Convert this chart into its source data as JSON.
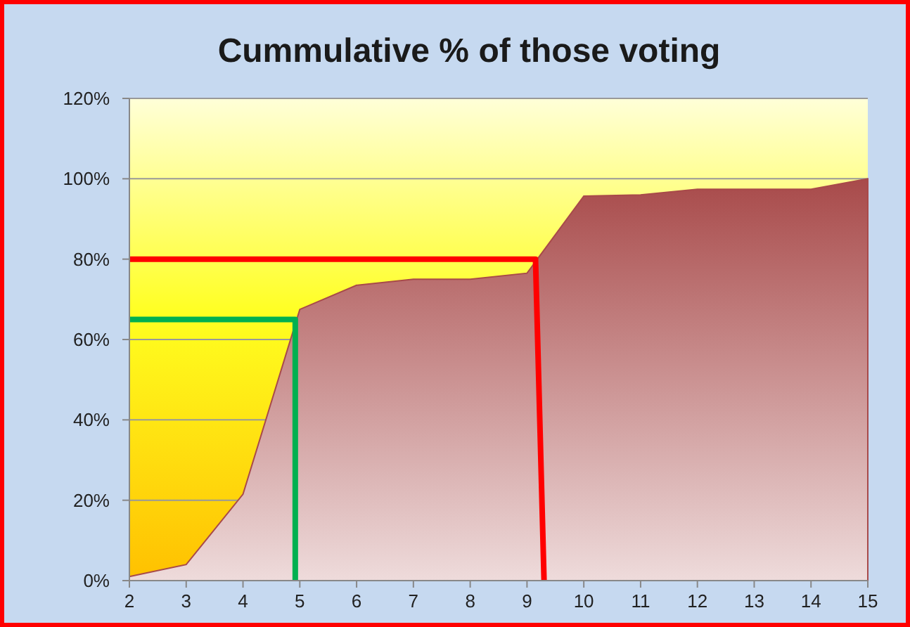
{
  "chart_data": {
    "type": "area",
    "title": "Cummulative % of those voting",
    "x": [
      2,
      3,
      4,
      5,
      6,
      7,
      8,
      9,
      10,
      11,
      12,
      13,
      14,
      15
    ],
    "xlim": [
      2,
      15
    ],
    "xticks": [
      2,
      3,
      4,
      5,
      6,
      7,
      8,
      9,
      10,
      11,
      12,
      13,
      14,
      15
    ],
    "ylim": [
      0,
      120
    ],
    "yticks": [
      {
        "value": 0,
        "label": "0%"
      },
      {
        "value": 20,
        "label": "20%"
      },
      {
        "value": 40,
        "label": "40%"
      },
      {
        "value": 60,
        "label": "60%"
      },
      {
        "value": 80,
        "label": "80%"
      },
      {
        "value": 100,
        "label": "100%"
      },
      {
        "value": 120,
        "label": "120%"
      }
    ],
    "grid": "y",
    "marker": "none",
    "series": [
      {
        "color": "#a84a4a",
        "values": [
          1,
          4,
          21.5,
          67.5,
          73.5,
          75,
          75,
          76.5,
          95.7,
          96,
          97.4,
          97.4,
          97.4,
          100
        ]
      },
      {
        "type": "line",
        "color": "#ff0000",
        "x": [
          2,
          9.15,
          9.3
        ],
        "values": [
          80,
          80,
          0
        ]
      },
      {
        "type": "line",
        "color": "#00b050",
        "x": [
          2,
          4.92,
          4.92
        ],
        "values": [
          65,
          65,
          0
        ]
      }
    ]
  }
}
